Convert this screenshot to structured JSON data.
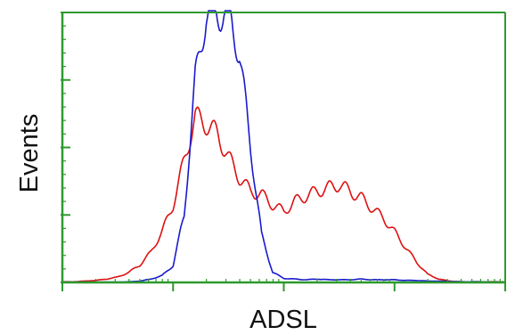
{
  "chart_data": {
    "type": "line",
    "title": "",
    "xlabel": "ADSL",
    "ylabel": "Events",
    "x_scale": "log",
    "x_decades": 4,
    "xlim": [
      0,
      4
    ],
    "ylim": [
      0,
      4
    ],
    "grid": false,
    "legend": "none",
    "axis_color": "#2e9a2e",
    "frame_color": "#2e9a2e",
    "series": [
      {
        "color": "#dd1111",
        "x": [
          0.0,
          0.1,
          0.2,
          0.3,
          0.4,
          0.5,
          0.6,
          0.7,
          0.8,
          0.9,
          1.0,
          1.1,
          1.2,
          1.3,
          1.4,
          1.5,
          1.6,
          1.7,
          1.8,
          1.9,
          2.0,
          2.1,
          2.2,
          2.3,
          2.4,
          2.5,
          2.6,
          2.7,
          2.8,
          2.9,
          3.0,
          3.1,
          3.2,
          3.3,
          3.4,
          3.5,
          3.6,
          3.7,
          3.8,
          3.9,
          4.0
        ],
        "values": [
          0.01,
          0.01,
          0.02,
          0.03,
          0.05,
          0.08,
          0.15,
          0.26,
          0.45,
          0.75,
          1.15,
          1.8,
          2.45,
          2.35,
          2.2,
          1.85,
          1.55,
          1.35,
          1.3,
          1.15,
          1.05,
          1.2,
          1.28,
          1.35,
          1.4,
          1.45,
          1.35,
          1.25,
          1.1,
          0.95,
          0.75,
          0.52,
          0.3,
          0.12,
          0.05,
          0.02,
          0.01,
          0.01,
          0.01,
          0.01,
          0.01
        ]
      },
      {
        "color": "#1a1acc",
        "x": [
          0.0,
          0.1,
          0.2,
          0.3,
          0.4,
          0.5,
          0.6,
          0.7,
          0.8,
          0.9,
          1.0,
          1.1,
          1.2,
          1.3,
          1.4,
          1.5,
          1.6,
          1.7,
          1.8,
          1.9,
          2.0,
          2.1,
          2.2,
          2.3,
          2.4,
          2.5,
          2.6,
          2.7,
          2.8,
          2.9,
          3.0,
          3.1,
          3.2,
          3.3,
          3.4,
          3.5,
          3.6,
          3.7,
          3.8,
          3.9,
          4.0
        ],
        "values": [
          0.005,
          0.005,
          0.005,
          0.005,
          0.005,
          0.005,
          0.01,
          0.02,
          0.05,
          0.1,
          0.25,
          1.0,
          3.0,
          4.0,
          4.0,
          4.0,
          3.4,
          2.0,
          0.7,
          0.15,
          0.06,
          0.05,
          0.04,
          0.05,
          0.04,
          0.04,
          0.04,
          0.05,
          0.04,
          0.04,
          0.04,
          0.03,
          0.03,
          0.02,
          0.02,
          0.015,
          0.01,
          0.01,
          0.01,
          0.005,
          0.005
        ]
      }
    ]
  }
}
